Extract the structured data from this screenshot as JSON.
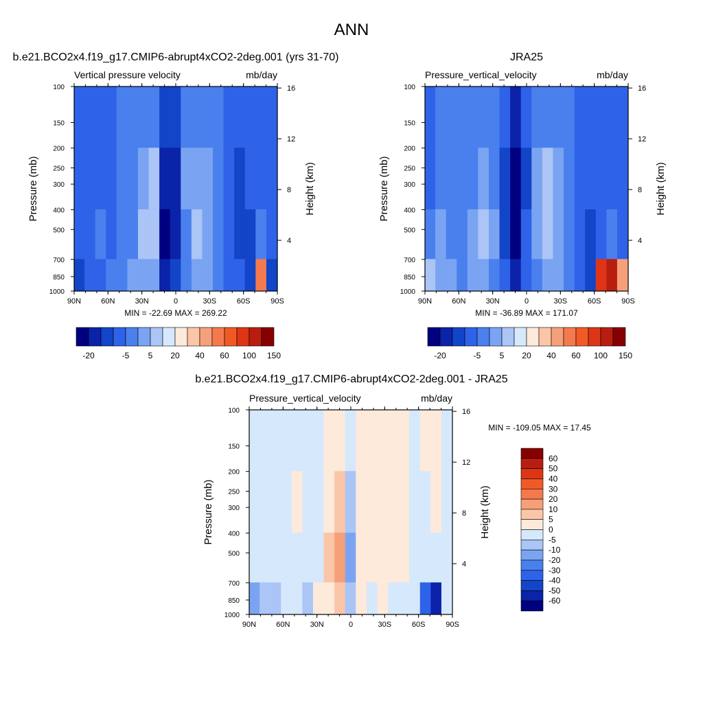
{
  "page_title": "ANN",
  "palettes": {
    "diverging_main": [
      "#000080",
      "#0a23a8",
      "#1245c8",
      "#2e62e8",
      "#4a80ee",
      "#7aa4f2",
      "#aac5f6",
      "#d6e8fc",
      "#fdeadb",
      "#fbc5a8",
      "#f6a07a",
      "#f47a4e",
      "#f15a26",
      "#de3517",
      "#b81e10",
      "#870000"
    ],
    "diverging_diff": [
      "#000080",
      "#0a23a8",
      "#1245c8",
      "#2e62e8",
      "#4a80ee",
      "#7aa4f2",
      "#aac5f6",
      "#d6e8fc",
      "#fdeadb",
      "#fbc5a8",
      "#f6a07a",
      "#f47a4e",
      "#f15a26",
      "#de3517",
      "#b81e10",
      "#870000"
    ]
  },
  "chart_data": [
    {
      "id": "model",
      "type": "heatmap",
      "title": "b.e21.BCO2x4.f19_g17.CMIP6-abrupt4xCO2-2deg.001 (yrs 31-70)",
      "left_subtitle": "Vertical pressure velocity",
      "right_subtitle": "mb/day",
      "xlabel": "",
      "ylabel": "Pressure (mb)",
      "y2label": "Height (km)",
      "x_ticks": [
        "90N",
        "60N",
        "30N",
        "0",
        "30S",
        "60S",
        "90S"
      ],
      "x_tick_values": [
        90,
        60,
        30,
        0,
        -30,
        -60,
        -90
      ],
      "y_ticks": [
        "100",
        "150",
        "200",
        "250",
        "300",
        "400",
        "500",
        "700",
        "850",
        "1000"
      ],
      "y_tick_values": [
        100,
        150,
        200,
        250,
        300,
        400,
        500,
        700,
        850,
        1000
      ],
      "y2_ticks": [
        "16",
        "12",
        "8",
        "4"
      ],
      "y2_tick_values": [
        16,
        12,
        8,
        4
      ],
      "xlim": [
        90,
        -90
      ],
      "ylim": [
        1000,
        100
      ],
      "stats": "MIN = -22.69  MAX = 269.22",
      "levels": [
        -20,
        -15,
        -10,
        -5,
        0,
        5,
        10,
        20,
        30,
        40,
        50,
        60,
        80,
        100,
        120,
        150
      ],
      "colorbar_labels": [
        "-20",
        "-5",
        "5",
        "20",
        "40",
        "60",
        "100",
        "150"
      ],
      "colorbar_label_at_edge": [
        1,
        4,
        6,
        8,
        10,
        12,
        14,
        16
      ],
      "columns": [
        {
          "lat": 90,
          "levels": [
            3,
            3,
            3,
            2
          ]
        },
        {
          "lat": 80,
          "levels": [
            3,
            3,
            3,
            3
          ]
        },
        {
          "lat": 70,
          "levels": [
            3,
            3,
            4,
            3
          ]
        },
        {
          "lat": 60,
          "levels": [
            3,
            3,
            3,
            4
          ]
        },
        {
          "lat": 50,
          "levels": [
            4,
            4,
            4,
            4
          ]
        },
        {
          "lat": 40,
          "levels": [
            4,
            4,
            4,
            5
          ]
        },
        {
          "lat": 30,
          "levels": [
            4,
            5,
            6,
            5
          ]
        },
        {
          "lat": 20,
          "levels": [
            4,
            6,
            6,
            5
          ]
        },
        {
          "lat": 10,
          "levels": [
            2,
            1,
            0,
            1
          ]
        },
        {
          "lat": 0,
          "levels": [
            2,
            1,
            1,
            2
          ]
        },
        {
          "lat": -10,
          "levels": [
            4,
            5,
            4,
            4
          ]
        },
        {
          "lat": -20,
          "levels": [
            4,
            5,
            6,
            5
          ]
        },
        {
          "lat": -30,
          "levels": [
            4,
            5,
            5,
            5
          ]
        },
        {
          "lat": -40,
          "levels": [
            4,
            4,
            4,
            4
          ]
        },
        {
          "lat": -50,
          "levels": [
            3,
            3,
            3,
            3
          ]
        },
        {
          "lat": -60,
          "levels": [
            3,
            2,
            2,
            3
          ]
        },
        {
          "lat": -70,
          "levels": [
            3,
            3,
            2,
            2
          ]
        },
        {
          "lat": -80,
          "levels": [
            3,
            3,
            4,
            11
          ]
        },
        {
          "lat": -90,
          "levels": [
            3,
            3,
            3,
            2
          ]
        }
      ]
    },
    {
      "id": "obs",
      "type": "heatmap",
      "title": "JRA25",
      "left_subtitle": "Pressure_vertical_velocity",
      "right_subtitle": "mb/day",
      "xlabel": "",
      "ylabel": "Pressure (mb)",
      "y2label": "Height (km)",
      "x_ticks": [
        "90N",
        "60N",
        "30N",
        "0",
        "30S",
        "60S",
        "90S"
      ],
      "x_tick_values": [
        90,
        60,
        30,
        0,
        -30,
        -60,
        -90
      ],
      "y_ticks": [
        "100",
        "150",
        "200",
        "250",
        "300",
        "400",
        "500",
        "700",
        "850",
        "1000"
      ],
      "y_tick_values": [
        100,
        150,
        200,
        250,
        300,
        400,
        500,
        700,
        850,
        1000
      ],
      "y2_ticks": [
        "16",
        "12",
        "8",
        "4"
      ],
      "y2_tick_values": [
        16,
        12,
        8,
        4
      ],
      "xlim": [
        90,
        -90
      ],
      "ylim": [
        1000,
        100
      ],
      "stats": "MIN = -36.89  MAX = 171.07",
      "levels": [
        -20,
        -15,
        -10,
        -5,
        0,
        5,
        10,
        20,
        30,
        40,
        50,
        60,
        80,
        100,
        120,
        150
      ],
      "colorbar_labels": [
        "-20",
        "-5",
        "5",
        "20",
        "40",
        "60",
        "100",
        "150"
      ],
      "colorbar_label_at_edge": [
        1,
        4,
        6,
        8,
        10,
        12,
        14,
        16
      ],
      "columns": [
        {
          "lat": 90,
          "levels": [
            3,
            3,
            4,
            6
          ]
        },
        {
          "lat": 80,
          "levels": [
            4,
            4,
            5,
            5
          ]
        },
        {
          "lat": 70,
          "levels": [
            4,
            4,
            4,
            5
          ]
        },
        {
          "lat": 60,
          "levels": [
            4,
            4,
            4,
            4
          ]
        },
        {
          "lat": 50,
          "levels": [
            4,
            4,
            5,
            5
          ]
        },
        {
          "lat": 40,
          "levels": [
            4,
            5,
            6,
            5
          ]
        },
        {
          "lat": 30,
          "levels": [
            4,
            4,
            5,
            4
          ]
        },
        {
          "lat": 20,
          "levels": [
            3,
            2,
            2,
            3
          ]
        },
        {
          "lat": 10,
          "levels": [
            1,
            0,
            0,
            1
          ]
        },
        {
          "lat": 0,
          "levels": [
            3,
            2,
            3,
            3
          ]
        },
        {
          "lat": -10,
          "levels": [
            4,
            5,
            5,
            4
          ]
        },
        {
          "lat": -20,
          "levels": [
            4,
            6,
            6,
            5
          ]
        },
        {
          "lat": -30,
          "levels": [
            4,
            5,
            5,
            5
          ]
        },
        {
          "lat": -40,
          "levels": [
            4,
            4,
            4,
            4
          ]
        },
        {
          "lat": -50,
          "levels": [
            3,
            3,
            3,
            3
          ]
        },
        {
          "lat": -60,
          "levels": [
            3,
            3,
            2,
            2
          ]
        },
        {
          "lat": -70,
          "levels": [
            3,
            3,
            3,
            13
          ]
        },
        {
          "lat": -80,
          "levels": [
            3,
            3,
            4,
            14
          ]
        },
        {
          "lat": -90,
          "levels": [
            3,
            3,
            3,
            10
          ]
        }
      ]
    },
    {
      "id": "diff",
      "type": "heatmap",
      "title": "b.e21.BCO2x4.f19_g17.CMIP6-abrupt4xCO2-2deg.001 - JRA25",
      "left_subtitle": "Pressure_vertical_velocity",
      "right_subtitle": "mb/day",
      "xlabel": "",
      "ylabel": "Pressure (mb)",
      "y2label": "Height (km)",
      "x_ticks": [
        "90N",
        "60N",
        "30N",
        "0",
        "30S",
        "60S",
        "90S"
      ],
      "x_tick_values": [
        90,
        60,
        30,
        0,
        -30,
        -60,
        -90
      ],
      "y_ticks": [
        "100",
        "150",
        "200",
        "250",
        "300",
        "400",
        "500",
        "700",
        "850",
        "1000"
      ],
      "y_tick_values": [
        100,
        150,
        200,
        250,
        300,
        400,
        500,
        700,
        850,
        1000
      ],
      "y2_ticks": [
        "16",
        "12",
        "8",
        "4"
      ],
      "y2_tick_values": [
        16,
        12,
        8,
        4
      ],
      "xlim": [
        90,
        -90
      ],
      "ylim": [
        1000,
        100
      ],
      "stats": "MIN = -109.05  MAX =  17.45",
      "levels": [
        -60,
        -50,
        -40,
        -30,
        -20,
        -10,
        -5,
        0,
        5,
        10,
        20,
        30,
        40,
        50,
        60
      ],
      "colorbar_labels": [
        "60",
        "50",
        "40",
        "30",
        "20",
        "10",
        "5",
        "0",
        "-5",
        "-10",
        "-20",
        "-30",
        "-40",
        "-50",
        "-60"
      ],
      "columns": [
        {
          "lat": 90,
          "levels": [
            7,
            7,
            7,
            5
          ]
        },
        {
          "lat": 80,
          "levels": [
            7,
            7,
            7,
            6
          ]
        },
        {
          "lat": 70,
          "levels": [
            7,
            7,
            7,
            6
          ]
        },
        {
          "lat": 60,
          "levels": [
            7,
            7,
            7,
            7
          ]
        },
        {
          "lat": 50,
          "levels": [
            7,
            8,
            7,
            7
          ]
        },
        {
          "lat": 40,
          "levels": [
            7,
            7,
            7,
            6
          ]
        },
        {
          "lat": 30,
          "levels": [
            7,
            7,
            7,
            8
          ]
        },
        {
          "lat": 20,
          "levels": [
            8,
            8,
            9,
            8
          ]
        },
        {
          "lat": 10,
          "levels": [
            8,
            9,
            10,
            9
          ]
        },
        {
          "lat": 0,
          "levels": [
            7,
            6,
            5,
            6
          ]
        },
        {
          "lat": -10,
          "levels": [
            8,
            8,
            8,
            8
          ]
        },
        {
          "lat": -20,
          "levels": [
            8,
            8,
            8,
            7
          ]
        },
        {
          "lat": -30,
          "levels": [
            8,
            8,
            8,
            8
          ]
        },
        {
          "lat": -40,
          "levels": [
            8,
            8,
            8,
            7
          ]
        },
        {
          "lat": -50,
          "levels": [
            8,
            8,
            8,
            7
          ]
        },
        {
          "lat": -60,
          "levels": [
            7,
            7,
            7,
            7
          ]
        },
        {
          "lat": -70,
          "levels": [
            8,
            7,
            7,
            3
          ]
        },
        {
          "lat": -80,
          "levels": [
            8,
            8,
            7,
            1
          ]
        },
        {
          "lat": -90,
          "levels": [
            7,
            7,
            7,
            7
          ]
        }
      ]
    }
  ]
}
